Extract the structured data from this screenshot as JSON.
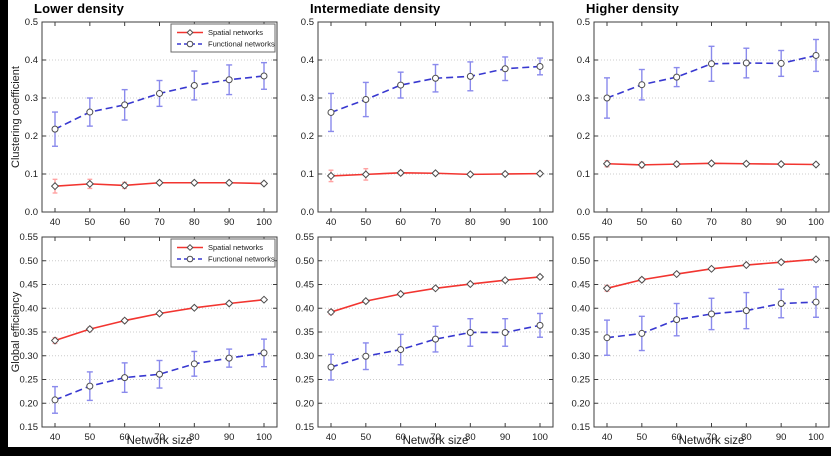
{
  "figure": {
    "background_color": "#000000",
    "canvas_color": "#ffffff"
  },
  "colors": {
    "spatial_line": "#f23530",
    "functional_line": "#3838d0",
    "spatial_error": "#ffa2a2",
    "functional_error": "#8a8aec",
    "marker_fill": "#ffffff",
    "marker_edge": "#4d4d4d",
    "grid": "#cccccc",
    "axis_border": "#3d3d3d",
    "tick_text": "#1a1a1a"
  },
  "legend": {
    "items": [
      {
        "label": "Spatial networks",
        "key": "spatial"
      },
      {
        "label": "Functional networks",
        "key": "functional"
      }
    ]
  },
  "x_axis": {
    "label": "Network size",
    "ticks": [
      40,
      50,
      60,
      70,
      80,
      90,
      100
    ],
    "range": [
      40,
      100
    ]
  },
  "chart_data": [
    {
      "type": "line",
      "title": "Lower density",
      "ylabel": "Clustering coefficient",
      "xlabel": "",
      "x": [
        40,
        50,
        60,
        70,
        80,
        90,
        100
      ],
      "ylim": [
        0.0,
        0.5
      ],
      "yticks": [
        0.0,
        0.1,
        0.2,
        0.3,
        0.4,
        0.5
      ],
      "decimals": 1,
      "legend": true,
      "grid": "horizontal-dotted",
      "series": [
        {
          "name": "Spatial networks",
          "key": "spatial",
          "line_style": "solid",
          "marker": "diamond",
          "values": [
            0.068,
            0.074,
            0.07,
            0.077,
            0.077,
            0.077,
            0.075
          ],
          "errors": [
            0.018,
            0.012,
            0.008,
            0.004,
            0.003,
            0.003,
            0.003
          ]
        },
        {
          "name": "Functional networks",
          "key": "functional",
          "line_style": "dashed",
          "marker": "circle",
          "values": [
            0.218,
            0.263,
            0.282,
            0.312,
            0.333,
            0.348,
            0.358
          ],
          "errors": [
            0.045,
            0.037,
            0.04,
            0.034,
            0.038,
            0.039,
            0.035
          ]
        }
      ]
    },
    {
      "type": "line",
      "title": "Intermediate density",
      "ylabel": "",
      "xlabel": "",
      "x": [
        40,
        50,
        60,
        70,
        80,
        90,
        100
      ],
      "ylim": [
        0.0,
        0.5
      ],
      "yticks": [
        0.0,
        0.1,
        0.2,
        0.3,
        0.4,
        0.5
      ],
      "decimals": 1,
      "legend": false,
      "grid": "horizontal-dotted",
      "series": [
        {
          "name": "Spatial networks",
          "key": "spatial",
          "line_style": "solid",
          "marker": "diamond",
          "values": [
            0.095,
            0.099,
            0.103,
            0.102,
            0.099,
            0.1,
            0.101
          ],
          "errors": [
            0.015,
            0.015,
            0.005,
            0.004,
            0.004,
            0.003,
            0.003
          ]
        },
        {
          "name": "Functional networks",
          "key": "functional",
          "line_style": "dashed",
          "marker": "circle",
          "values": [
            0.262,
            0.296,
            0.334,
            0.352,
            0.357,
            0.377,
            0.383
          ],
          "errors": [
            0.05,
            0.045,
            0.034,
            0.036,
            0.038,
            0.031,
            0.022
          ]
        }
      ]
    },
    {
      "type": "line",
      "title": "Higher density",
      "ylabel": "",
      "xlabel": "",
      "x": [
        40,
        50,
        60,
        70,
        80,
        90,
        100
      ],
      "ylim": [
        0.0,
        0.5
      ],
      "yticks": [
        0.0,
        0.1,
        0.2,
        0.3,
        0.4,
        0.5
      ],
      "decimals": 1,
      "legend": false,
      "grid": "horizontal-dotted",
      "series": [
        {
          "name": "Spatial networks",
          "key": "spatial",
          "line_style": "solid",
          "marker": "diamond",
          "values": [
            0.127,
            0.124,
            0.126,
            0.128,
            0.127,
            0.126,
            0.125
          ],
          "errors": [
            0.008,
            0.007,
            0.006,
            0.004,
            0.003,
            0.003,
            0.003
          ]
        },
        {
          "name": "Functional networks",
          "key": "functional",
          "line_style": "dashed",
          "marker": "circle",
          "values": [
            0.3,
            0.335,
            0.355,
            0.39,
            0.392,
            0.391,
            0.412
          ],
          "errors": [
            0.053,
            0.04,
            0.025,
            0.046,
            0.039,
            0.034,
            0.042
          ]
        }
      ]
    },
    {
      "type": "line",
      "title": "",
      "ylabel": "Global efficiency",
      "xlabel": "Network size",
      "x": [
        40,
        50,
        60,
        70,
        80,
        90,
        100
      ],
      "ylim": [
        0.15,
        0.55
      ],
      "yticks": [
        0.15,
        0.2,
        0.25,
        0.3,
        0.35,
        0.4,
        0.45,
        0.5,
        0.55
      ],
      "decimals": 2,
      "legend": true,
      "grid": "horizontal-dotted",
      "series": [
        {
          "name": "Spatial networks",
          "key": "spatial",
          "line_style": "solid",
          "marker": "diamond",
          "values": [
            0.332,
            0.356,
            0.374,
            0.389,
            0.401,
            0.41,
            0.418
          ],
          "errors": [
            0.006,
            0.004,
            0.004,
            0.003,
            0.003,
            0.003,
            0.003
          ]
        },
        {
          "name": "Functional networks",
          "key": "functional",
          "line_style": "dashed",
          "marker": "circle",
          "values": [
            0.207,
            0.236,
            0.254,
            0.261,
            0.283,
            0.295,
            0.306
          ],
          "errors": [
            0.028,
            0.03,
            0.031,
            0.029,
            0.026,
            0.019,
            0.029
          ]
        }
      ]
    },
    {
      "type": "line",
      "title": "",
      "ylabel": "",
      "xlabel": "Network size",
      "x": [
        40,
        50,
        60,
        70,
        80,
        90,
        100
      ],
      "ylim": [
        0.15,
        0.55
      ],
      "yticks": [
        0.15,
        0.2,
        0.25,
        0.3,
        0.35,
        0.4,
        0.45,
        0.5,
        0.55
      ],
      "decimals": 2,
      "legend": false,
      "grid": "horizontal-dotted",
      "series": [
        {
          "name": "Spatial networks",
          "key": "spatial",
          "line_style": "solid",
          "marker": "diamond",
          "values": [
            0.392,
            0.415,
            0.43,
            0.442,
            0.451,
            0.459,
            0.466
          ],
          "errors": [
            0.005,
            0.003,
            0.003,
            0.003,
            0.003,
            0.003,
            0.003
          ]
        },
        {
          "name": "Functional networks",
          "key": "functional",
          "line_style": "dashed",
          "marker": "circle",
          "values": [
            0.276,
            0.299,
            0.313,
            0.335,
            0.349,
            0.349,
            0.364
          ],
          "errors": [
            0.027,
            0.028,
            0.032,
            0.027,
            0.029,
            0.029,
            0.025
          ]
        }
      ]
    },
    {
      "type": "line",
      "title": "",
      "ylabel": "",
      "xlabel": "Network size",
      "x": [
        40,
        50,
        60,
        70,
        80,
        90,
        100
      ],
      "ylim": [
        0.15,
        0.55
      ],
      "yticks": [
        0.15,
        0.2,
        0.25,
        0.3,
        0.35,
        0.4,
        0.45,
        0.5,
        0.55
      ],
      "decimals": 2,
      "legend": false,
      "grid": "horizontal-dotted",
      "series": [
        {
          "name": "Spatial networks",
          "key": "spatial",
          "line_style": "solid",
          "marker": "diamond",
          "values": [
            0.442,
            0.46,
            0.472,
            0.483,
            0.491,
            0.497,
            0.503
          ],
          "errors": [
            0.006,
            0.004,
            0.003,
            0.003,
            0.003,
            0.003,
            0.003
          ]
        },
        {
          "name": "Functional networks",
          "key": "functional",
          "line_style": "dashed",
          "marker": "circle",
          "values": [
            0.338,
            0.347,
            0.376,
            0.388,
            0.395,
            0.41,
            0.413
          ],
          "errors": [
            0.037,
            0.036,
            0.034,
            0.033,
            0.038,
            0.03,
            0.032
          ]
        }
      ]
    }
  ]
}
